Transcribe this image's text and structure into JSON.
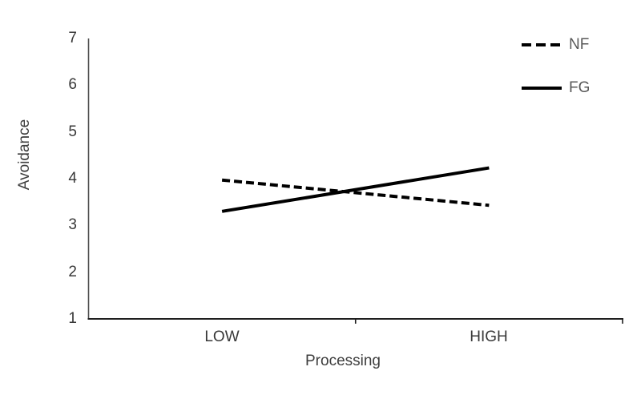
{
  "chart_data": {
    "type": "line",
    "title": "",
    "xlabel": "Processing",
    "ylabel": "Avoidance",
    "categories": [
      "LOW",
      "HIGH"
    ],
    "series": [
      {
        "name": "NF",
        "line_style": "dashed",
        "values": [
          3.97,
          3.43
        ]
      },
      {
        "name": "FG",
        "line_style": "solid",
        "values": [
          3.3,
          4.23
        ]
      }
    ],
    "ylim": [
      1,
      7
    ],
    "ytick_labels": [
      "7",
      "6",
      "5",
      "4",
      "3",
      "2",
      "1"
    ],
    "grid": false,
    "legend_position": "top-right",
    "line_color": "#000000",
    "axis_color": "#404040"
  }
}
